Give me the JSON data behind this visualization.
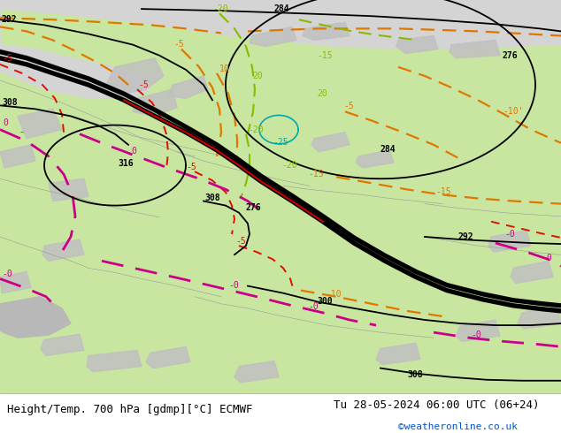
{
  "title_left": "Height/Temp. 700 hPa [gdmp][°C] ECMWF",
  "title_right": "Tu 28-05-2024 06:00 UTC (06+24)",
  "credit": "©weatheronline.co.uk",
  "footer_bg": "#ffffff",
  "map_green": "#c8e6a0",
  "map_gray_sea": "#d4d4d4",
  "map_gray_land": "#c0c0c0",
  "font_family": "monospace",
  "title_fontsize": 9,
  "credit_fontsize": 8,
  "credit_color": "#0055cc",
  "black_contour_lw": 1.3,
  "thick_front_lw": 3.8,
  "orange_color": "#e07800",
  "green_iso_color": "#88bb00",
  "cyan_color": "#00aaaa",
  "red_color": "#dd1100",
  "magenta_color": "#cc0088"
}
